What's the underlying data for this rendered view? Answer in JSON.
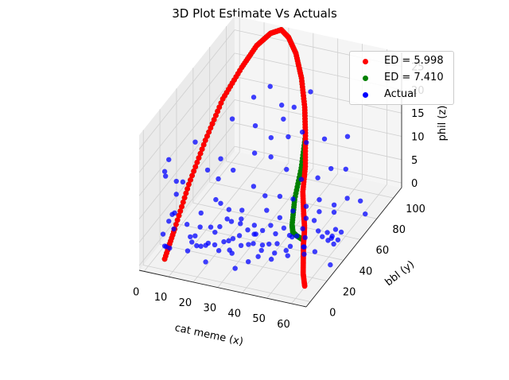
{
  "chart_data": {
    "type": "scatter",
    "projection": "3d",
    "title": "3D Plot Estimate Vs Actuals",
    "xlabel": "cat meme (x)",
    "ylabel": "bbl (y)",
    "zlabel": "phil (z)",
    "xticks": [
      "0",
      "10",
      "20",
      "30",
      "40",
      "50",
      "60"
    ],
    "yticks": [
      "0",
      "20",
      "40",
      "60",
      "80",
      "100"
    ],
    "zticks": [
      "0",
      "5",
      "10",
      "15",
      "20",
      "25"
    ],
    "xlim": [
      -2,
      66
    ],
    "ylim": [
      -5,
      110
    ],
    "zlim": [
      -1,
      28
    ],
    "grid": true,
    "legend_position": "top-right",
    "colors": {
      "red": "#ff0000",
      "green": "#008000",
      "blue": "#0000ff"
    },
    "series": [
      {
        "name": "ED = 5.998",
        "color": "#ff0000",
        "kind": "curve",
        "points": [
          [
            5,
            5,
            0
          ],
          [
            4,
            20,
            3
          ],
          [
            3,
            40,
            8
          ],
          [
            3,
            60,
            13
          ],
          [
            4,
            78,
            18
          ],
          [
            7,
            92,
            22
          ],
          [
            10,
            101,
            25
          ],
          [
            14,
            106,
            27
          ],
          [
            18,
            107,
            28
          ],
          [
            22,
            104,
            27.5
          ],
          [
            27,
            98,
            26
          ],
          [
            32,
            90,
            23
          ],
          [
            36,
            82,
            19
          ],
          [
            39,
            74,
            15
          ],
          [
            41,
            68,
            10
          ],
          [
            42,
            62,
            6
          ],
          [
            43,
            60,
            2
          ],
          [
            44,
            58,
            0
          ],
          [
            46,
            52,
            0
          ],
          [
            49,
            42,
            0
          ],
          [
            53,
            30,
            0
          ],
          [
            57,
            18,
            0
          ],
          [
            61,
            8,
            0
          ]
        ]
      },
      {
        "name": "ED = 7.410",
        "color": "#008000",
        "kind": "curve",
        "points": [
          [
            5,
            5,
            0
          ],
          [
            4,
            20,
            3
          ],
          [
            3,
            40,
            8
          ],
          [
            3,
            60,
            13
          ],
          [
            4,
            78,
            18
          ],
          [
            7,
            92,
            22
          ],
          [
            10,
            101,
            25
          ],
          [
            14,
            106,
            27
          ],
          [
            18,
            107,
            28
          ],
          [
            22,
            104,
            27.5
          ],
          [
            27,
            98,
            26
          ],
          [
            32,
            90,
            23
          ],
          [
            36,
            82,
            19
          ],
          [
            39,
            74,
            15
          ],
          [
            40,
            66,
            10
          ],
          [
            40,
            58,
            5
          ],
          [
            41,
            52,
            1
          ],
          [
            42,
            50,
            0
          ],
          [
            44,
            48,
            0
          ],
          [
            47,
            46,
            0
          ]
        ]
      },
      {
        "name": "Actual",
        "color": "#0000ff",
        "kind": "points",
        "points": [
          [
            4,
            8,
            18
          ],
          [
            6,
            7,
            21
          ],
          [
            9,
            30,
            20
          ],
          [
            3,
            12,
            16
          ],
          [
            8,
            18,
            14
          ],
          [
            4,
            22,
            10
          ],
          [
            3,
            25,
            12
          ],
          [
            5,
            10,
            7
          ],
          [
            6,
            14,
            8
          ],
          [
            4,
            6,
            5
          ],
          [
            5,
            16,
            4
          ],
          [
            3,
            20,
            6
          ],
          [
            4,
            8,
            2
          ],
          [
            5,
            11,
            1
          ],
          [
            6,
            4,
            3
          ],
          [
            18,
            48,
            22
          ],
          [
            22,
            62,
            24
          ],
          [
            26,
            70,
            25
          ],
          [
            24,
            58,
            19
          ],
          [
            30,
            72,
            21
          ],
          [
            28,
            80,
            16
          ],
          [
            33,
            88,
            12
          ],
          [
            32,
            74,
            14
          ],
          [
            36,
            84,
            11
          ],
          [
            40,
            94,
            10
          ],
          [
            46,
            104,
            9
          ],
          [
            34,
            66,
            9
          ],
          [
            38,
            72,
            6
          ],
          [
            42,
            80,
            5
          ],
          [
            26,
            50,
            8
          ],
          [
            20,
            38,
            5
          ],
          [
            16,
            28,
            3
          ],
          [
            24,
            40,
            2
          ],
          [
            28,
            45,
            1
          ],
          [
            32,
            48,
            4
          ],
          [
            36,
            52,
            2
          ],
          [
            40,
            56,
            3
          ],
          [
            44,
            60,
            1
          ],
          [
            48,
            64,
            2
          ],
          [
            52,
            70,
            1
          ],
          [
            56,
            60,
            0
          ],
          [
            60,
            55,
            1
          ],
          [
            62,
            40,
            2
          ],
          [
            64,
            30,
            0
          ],
          [
            50,
            40,
            0
          ],
          [
            46,
            30,
            1
          ],
          [
            42,
            24,
            0
          ],
          [
            38,
            20,
            1
          ],
          [
            34,
            26,
            2
          ],
          [
            30,
            32,
            0
          ],
          [
            26,
            20,
            3
          ],
          [
            22,
            26,
            1
          ],
          [
            18,
            16,
            2
          ],
          [
            14,
            22,
            0
          ],
          [
            12,
            12,
            1
          ],
          [
            20,
            10,
            0
          ],
          [
            24,
            14,
            2
          ],
          [
            28,
            18,
            1
          ],
          [
            32,
            10,
            0
          ],
          [
            36,
            14,
            1
          ],
          [
            40,
            18,
            3
          ],
          [
            44,
            22,
            2
          ],
          [
            48,
            26,
            1
          ],
          [
            52,
            34,
            0
          ],
          [
            56,
            44,
            2
          ],
          [
            58,
            50,
            1
          ],
          [
            54,
            56,
            0
          ],
          [
            50,
            52,
            3
          ],
          [
            47,
            47,
            2
          ],
          [
            43,
            43,
            1
          ],
          [
            39,
            38,
            2
          ],
          [
            35,
            34,
            0
          ],
          [
            31,
            38,
            1
          ],
          [
            27,
            30,
            2
          ],
          [
            23,
            34,
            0
          ],
          [
            19,
            44,
            1
          ],
          [
            15,
            36,
            0
          ],
          [
            11,
            30,
            2
          ],
          [
            9,
            24,
            1
          ],
          [
            13,
            18,
            3
          ],
          [
            17,
            22,
            1
          ],
          [
            21,
            18,
            2
          ],
          [
            25,
            24,
            0
          ],
          [
            29,
            26,
            1
          ],
          [
            33,
            30,
            3
          ],
          [
            37,
            36,
            0
          ],
          [
            41,
            34,
            1
          ],
          [
            45,
            38,
            0
          ],
          [
            49,
            44,
            1
          ],
          [
            53,
            48,
            2
          ],
          [
            57,
            52,
            0
          ],
          [
            61,
            48,
            1
          ],
          [
            59,
            42,
            2
          ],
          [
            55,
            38,
            0
          ],
          [
            51,
            36,
            1
          ],
          [
            47,
            40,
            2
          ],
          [
            43,
            46,
            0
          ],
          [
            39,
            48,
            1
          ],
          [
            35,
            44,
            2
          ],
          [
            31,
            46,
            0
          ],
          [
            27,
            40,
            1
          ],
          [
            23,
            44,
            2
          ],
          [
            19,
            30,
            3
          ],
          [
            15,
            14,
            2
          ],
          [
            11,
            20,
            1
          ],
          [
            7,
            26,
            3
          ],
          [
            10,
            34,
            4
          ],
          [
            14,
            40,
            6
          ],
          [
            18,
            34,
            7
          ],
          [
            22,
            30,
            5
          ],
          [
            26,
            36,
            6
          ],
          [
            30,
            52,
            6
          ],
          [
            34,
            58,
            5
          ],
          [
            38,
            62,
            4
          ],
          [
            42,
            66,
            2
          ],
          [
            46,
            70,
            3
          ],
          [
            50,
            76,
            1
          ],
          [
            54,
            80,
            2
          ],
          [
            58,
            84,
            1
          ],
          [
            62,
            78,
            0
          ],
          [
            44,
            90,
            5
          ],
          [
            48,
            96,
            4
          ],
          [
            21,
            66,
            11
          ],
          [
            25,
            74,
            13
          ],
          [
            29,
            62,
            12
          ],
          [
            17,
            52,
            10
          ],
          [
            13,
            46,
            9
          ],
          [
            31,
            84,
            18
          ],
          [
            35,
            92,
            20
          ],
          [
            16,
            40,
            15
          ],
          [
            12,
            36,
            13
          ]
        ]
      }
    ]
  }
}
